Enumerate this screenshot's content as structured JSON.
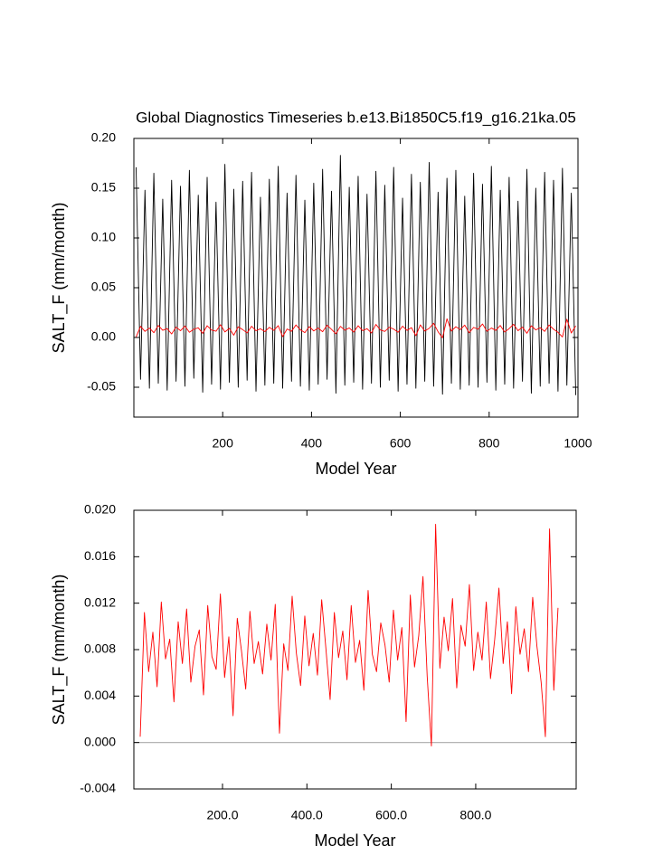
{
  "chart_data": [
    {
      "type": "line",
      "title": "Global Diagnostics Timeseries b.e13.Bi1850C5.f19_g16.21ka.05",
      "x_label": "Model Year",
      "y_label": "SALT_F (mm/month)",
      "xlim": [
        0,
        1000
      ],
      "xticks": [
        200,
        400,
        600,
        800,
        1000
      ],
      "ylim": [
        -0.08,
        0.2
      ],
      "yticks": [
        {
          "value": -0.05,
          "label": "-0.05"
        },
        {
          "value": 0,
          "label": "0.00"
        },
        {
          "value": 0.05,
          "label": "0.05"
        },
        {
          "value": 0.1,
          "label": "0.10"
        },
        {
          "value": 0.15,
          "label": "0.15"
        },
        {
          "value": 0.2,
          "label": "0.20"
        }
      ],
      "x": [
        5,
        15,
        25,
        35,
        45,
        55,
        65,
        75,
        85,
        95,
        105,
        115,
        125,
        135,
        145,
        155,
        165,
        175,
        185,
        195,
        205,
        215,
        225,
        235,
        245,
        255,
        265,
        275,
        285,
        295,
        305,
        315,
        325,
        335,
        345,
        355,
        365,
        375,
        385,
        395,
        405,
        415,
        425,
        435,
        445,
        455,
        465,
        475,
        485,
        495,
        505,
        515,
        525,
        535,
        545,
        555,
        565,
        575,
        585,
        595,
        605,
        615,
        625,
        635,
        645,
        655,
        665,
        675,
        685,
        695,
        705,
        715,
        725,
        735,
        745,
        755,
        765,
        775,
        785,
        795,
        805,
        815,
        825,
        835,
        845,
        855,
        865,
        875,
        885,
        895,
        905,
        915,
        925,
        935,
        945,
        955,
        965,
        975,
        985,
        995
      ],
      "series": [
        {
          "color": "#000000",
          "values": [
            0.171,
            -0.042,
            0.148,
            -0.051,
            0.165,
            -0.046,
            0.139,
            -0.053,
            0.158,
            -0.044,
            0.152,
            -0.049,
            0.168,
            -0.041,
            0.143,
            -0.055,
            0.161,
            -0.047,
            0.136,
            -0.052,
            0.174,
            -0.045,
            0.149,
            -0.05,
            0.157,
            -0.043,
            0.166,
            -0.054,
            0.141,
            -0.048,
            0.159,
            -0.046,
            0.172,
            -0.051,
            0.145,
            -0.044,
            0.163,
            -0.049,
            0.138,
            -0.053,
            0.155,
            -0.047,
            0.169,
            -0.042,
            0.147,
            -0.056,
            0.183,
            -0.048,
            0.151,
            -0.045,
            0.162,
            -0.052,
            0.144,
            -0.046,
            0.167,
            -0.05,
            0.153,
            -0.043,
            0.171,
            -0.054,
            0.14,
            -0.047,
            0.164,
            -0.051,
            0.156,
            -0.044,
            0.176,
            -0.049,
            0.146,
            -0.057,
            0.16,
            -0.046,
            0.168,
            -0.052,
            0.142,
            -0.048,
            0.165,
            -0.05,
            0.154,
            -0.045,
            0.172,
            -0.053,
            0.148,
            -0.047,
            0.161,
            -0.051,
            0.137,
            -0.044,
            0.169,
            -0.056,
            0.15,
            -0.049,
            0.166,
            -0.046,
            0.158,
            -0.054,
            0.17,
            -0.048,
            0.145,
            -0.058
          ]
        },
        {
          "color": "#ff0000",
          "values": [
            0.0005,
            0.0112,
            0.0061,
            0.0095,
            0.0048,
            0.0121,
            0.0072,
            0.0089,
            0.0035,
            0.0104,
            0.0068,
            0.0115,
            0.0052,
            0.0083,
            0.0097,
            0.0041,
            0.0118,
            0.0074,
            0.0063,
            0.0128,
            0.0056,
            0.0091,
            0.0023,
            0.0107,
            0.0079,
            0.0046,
            0.0113,
            0.0068,
            0.0087,
            0.0059,
            0.0102,
            0.0071,
            0.0119,
            0.0008,
            0.0085,
            0.0062,
            0.0126,
            0.0077,
            0.0049,
            0.0109,
            0.0066,
            0.0094,
            0.0058,
            0.0123,
            0.0081,
            0.0037,
            0.0112,
            0.0073,
            0.0096,
            0.0054,
            0.0118,
            0.0069,
            0.0088,
            0.0045,
            0.0131,
            0.0076,
            0.0061,
            0.0103,
            0.0084,
            0.0052,
            0.0114,
            0.0071,
            0.0099,
            0.0018,
            0.0127,
            0.0065,
            0.0092,
            0.0143,
            0.0057,
            -0.0003,
            0.0188,
            0.0064,
            0.0108,
            0.0079,
            0.0124,
            0.0047,
            0.0101,
            0.0083,
            0.0136,
            0.0062,
            0.0095,
            0.0071,
            0.0121,
            0.0055,
            0.0089,
            0.0133,
            0.0068,
            0.0104,
            0.0042,
            0.0117,
            0.0076,
            0.0098,
            0.0061,
            0.0125,
            0.0083,
            0.0052,
            0.0005,
            0.0184,
            0.0045,
            0.0116
          ]
        }
      ]
    },
    {
      "type": "line",
      "x_label": "Model Year",
      "y_label": "SALT_F (mm/month)",
      "xlim": [
        -10,
        1038
      ],
      "xticks": [
        {
          "value": 200,
          "label": "200.0"
        },
        {
          "value": 400,
          "label": "400.0"
        },
        {
          "value": 600,
          "label": "600.0"
        },
        {
          "value": 800,
          "label": "800.0"
        }
      ],
      "ylim": [
        -0.004,
        0.02
      ],
      "yticks": [
        {
          "value": -0.004,
          "label": "-0.004"
        },
        {
          "value": 0,
          "label": "0.000"
        },
        {
          "value": 0.004,
          "label": "0.004"
        },
        {
          "value": 0.008,
          "label": "0.008"
        },
        {
          "value": 0.012,
          "label": "0.012"
        },
        {
          "value": 0.016,
          "label": "0.016"
        },
        {
          "value": 0.02,
          "label": "0.020"
        }
      ],
      "reference_line": 0,
      "reference_color": "#aaaaaa",
      "x": [
        5,
        15,
        25,
        35,
        45,
        55,
        65,
        75,
        85,
        95,
        105,
        115,
        125,
        135,
        145,
        155,
        165,
        175,
        185,
        195,
        205,
        215,
        225,
        235,
        245,
        255,
        265,
        275,
        285,
        295,
        305,
        315,
        325,
        335,
        345,
        355,
        365,
        375,
        385,
        395,
        405,
        415,
        425,
        435,
        445,
        455,
        465,
        475,
        485,
        495,
        505,
        515,
        525,
        535,
        545,
        555,
        565,
        575,
        585,
        595,
        605,
        615,
        625,
        635,
        645,
        655,
        665,
        675,
        685,
        695,
        705,
        715,
        725,
        735,
        745,
        755,
        765,
        775,
        785,
        795,
        805,
        815,
        825,
        835,
        845,
        855,
        865,
        875,
        885,
        895,
        905,
        915,
        925,
        935,
        945,
        955,
        965,
        975,
        985,
        995
      ],
      "series": [
        {
          "color": "#ff0000",
          "values": [
            0.0005,
            0.0112,
            0.0061,
            0.0095,
            0.0048,
            0.0121,
            0.0072,
            0.0089,
            0.0035,
            0.0104,
            0.0068,
            0.0115,
            0.0052,
            0.0083,
            0.0097,
            0.0041,
            0.0118,
            0.0074,
            0.0063,
            0.0128,
            0.0056,
            0.0091,
            0.0023,
            0.0107,
            0.0079,
            0.0046,
            0.0113,
            0.0068,
            0.0087,
            0.0059,
            0.0102,
            0.0071,
            0.0119,
            0.0008,
            0.0085,
            0.0062,
            0.0126,
            0.0077,
            0.0049,
            0.0109,
            0.0066,
            0.0094,
            0.0058,
            0.0123,
            0.0081,
            0.0037,
            0.0112,
            0.0073,
            0.0096,
            0.0054,
            0.0118,
            0.0069,
            0.0088,
            0.0045,
            0.0131,
            0.0076,
            0.0061,
            0.0103,
            0.0084,
            0.0052,
            0.0114,
            0.0071,
            0.0099,
            0.0018,
            0.0127,
            0.0065,
            0.0092,
            0.0143,
            0.0057,
            -0.0003,
            0.0188,
            0.0064,
            0.0108,
            0.0079,
            0.0124,
            0.0047,
            0.0101,
            0.0083,
            0.0136,
            0.0062,
            0.0095,
            0.0071,
            0.0121,
            0.0055,
            0.0089,
            0.0133,
            0.0068,
            0.0104,
            0.0042,
            0.0117,
            0.0076,
            0.0098,
            0.0061,
            0.0125,
            0.0083,
            0.0052,
            0.0005,
            0.0184,
            0.0045,
            0.0116
          ]
        }
      ]
    }
  ]
}
